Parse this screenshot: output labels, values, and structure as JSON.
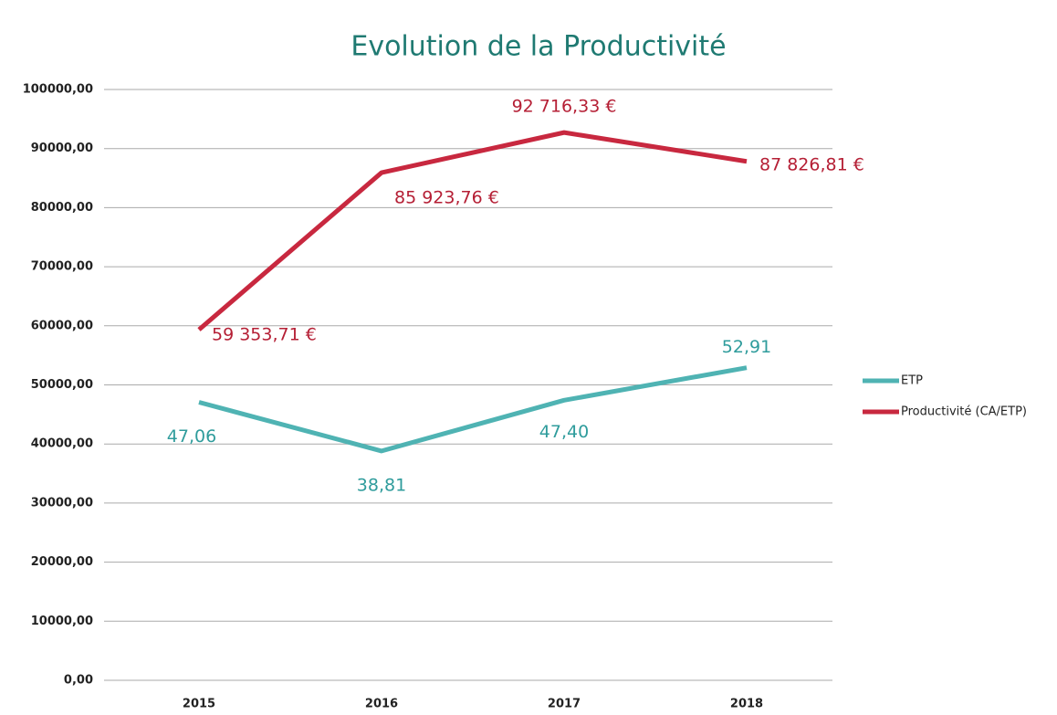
{
  "chart_data": {
    "type": "line",
    "title": "Evolution de la Productivité",
    "categories": [
      "2015",
      "2016",
      "2017",
      "2018"
    ],
    "series": [
      {
        "name": "ETP",
        "color": "#4fb3b3",
        "axis": "y2",
        "values": [
          47.06,
          38.81,
          47.4,
          52.91
        ],
        "value_labels": [
          "47,06",
          "38,81",
          "47,40",
          "52,91"
        ]
      },
      {
        "name": "Productivité (CA/ETP)",
        "color": "#c8283f",
        "values": [
          59353.71,
          85923.76,
          92716.33,
          87826.81
        ],
        "value_labels": [
          "59 353,71 €",
          "85 923,76 €",
          "92 716,33 €",
          "87 826,81 €"
        ]
      }
    ],
    "ylim": [
      0,
      100000
    ],
    "yticks": [
      {
        "value": 0,
        "label": "0,00"
      },
      {
        "value": 10000,
        "label": "10000,00"
      },
      {
        "value": 20000,
        "label": "20000,00"
      },
      {
        "value": 30000,
        "label": "30000,00"
      },
      {
        "value": 40000,
        "label": "40000,00"
      },
      {
        "value": 50000,
        "label": "50000,00"
      },
      {
        "value": 60000,
        "label": "60000,00"
      },
      {
        "value": 70000,
        "label": "70000,00"
      },
      {
        "value": 80000,
        "label": "80000,00"
      },
      {
        "value": 90000,
        "label": "90000,00"
      },
      {
        "value": 100000,
        "label": "100000,00"
      }
    ],
    "y2lim": [
      0,
      100
    ],
    "grid": true,
    "legend": "right"
  }
}
